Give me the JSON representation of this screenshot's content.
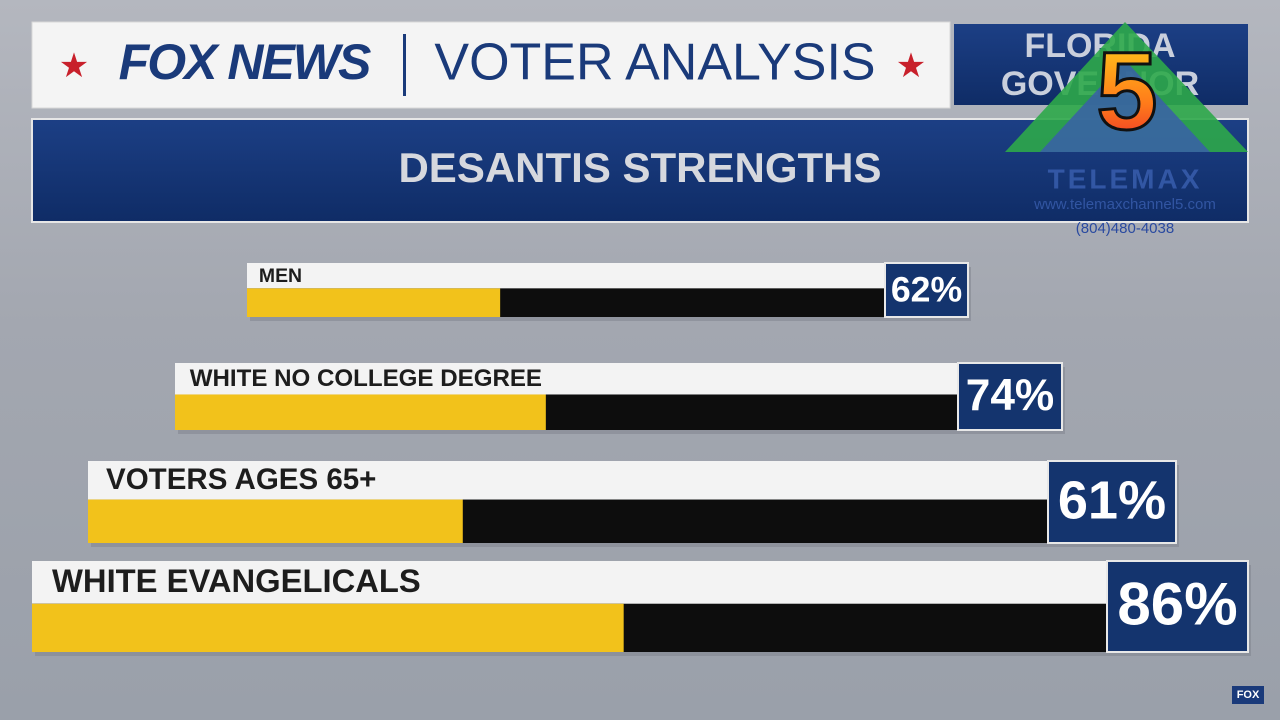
{
  "header": {
    "brand": "FOX NEWS",
    "section": "VOTER ANALYSIS",
    "race_line1": "FLORIDA",
    "race_line2": "GOVERNOR"
  },
  "chart_data": {
    "type": "bar",
    "title": "DESANTIS STRENGTHS",
    "categories": [
      "MEN",
      "WHITE NO COLLEGE DEGREE",
      "VOTERS AGES 65+",
      "WHITE EVANGELICALS"
    ],
    "values": [
      62,
      74,
      61,
      86
    ],
    "value_labels": [
      "62%",
      "74%",
      "61%",
      "86%"
    ],
    "color": "#f2c21b",
    "track_color": "#0d0d0d",
    "label_box_color": "#14346e"
  },
  "watermark": {
    "channel": "5",
    "name": "TELEMAX",
    "url": "www.telemaxchannel5.com",
    "phone": "(804)480-4038"
  },
  "corner_logo": "FOX"
}
